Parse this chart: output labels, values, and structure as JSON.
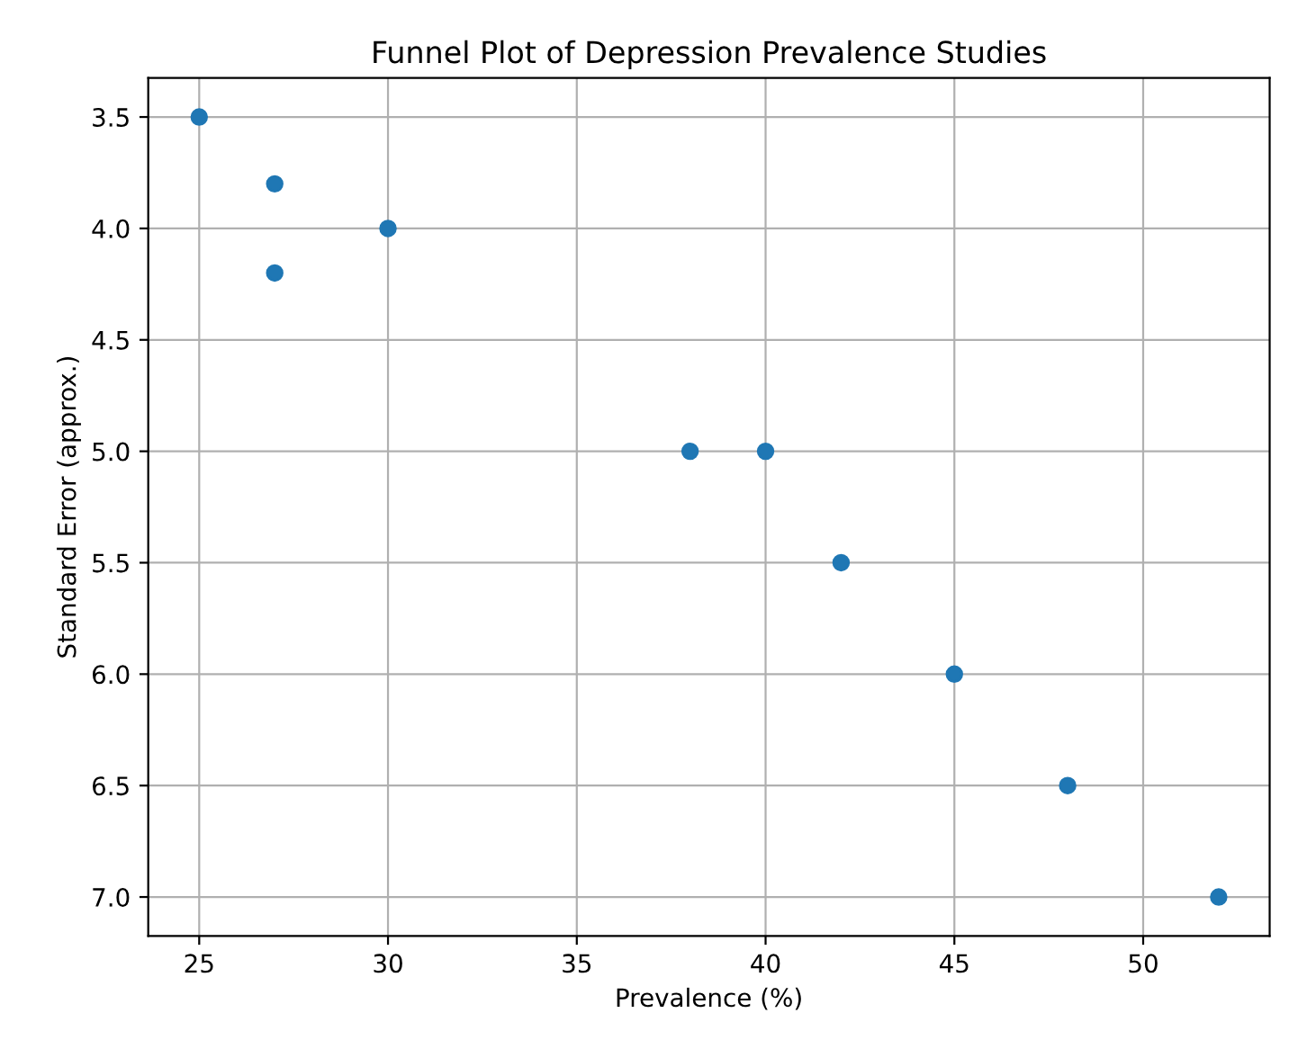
{
  "chart_data": {
    "type": "scatter",
    "title": "Funnel Plot of Depression Prevalence Studies",
    "xlabel": "Prevalence (%)",
    "ylabel": "Standard Error (approx.)",
    "x": [
      25,
      27,
      27,
      30,
      38,
      40,
      42,
      45,
      48,
      52
    ],
    "series": [
      {
        "color": "#1f77b4",
        "values": [
          3.5,
          3.8,
          4.2,
          4.0,
          5.0,
          5.0,
          5.5,
          6.0,
          6.5,
          7.0
        ]
      }
    ],
    "xlim": [
      23.65,
      53.35
    ],
    "xticks": [
      25,
      30,
      35,
      40,
      45,
      50
    ],
    "ylim": [
      7.175,
      3.325
    ],
    "yticks": [
      {
        "value": 3.5,
        "label": "3.5"
      },
      {
        "value": 4.0,
        "label": "4.0"
      },
      {
        "value": 4.5,
        "label": "4.5"
      },
      {
        "value": 5.0,
        "label": "5.0"
      },
      {
        "value": 5.5,
        "label": "5.5"
      },
      {
        "value": 6.0,
        "label": "6.0"
      },
      {
        "value": 6.5,
        "label": "6.5"
      },
      {
        "value": 7.0,
        "label": "7.0"
      }
    ],
    "grid": true,
    "marker": "circle"
  }
}
